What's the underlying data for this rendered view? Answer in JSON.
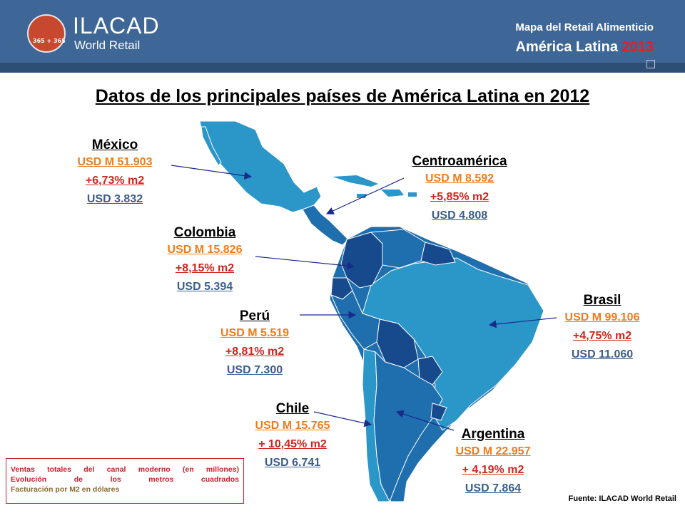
{
  "header": {
    "brand": "ILACAD",
    "brand_sub": "World Retail",
    "logo_days": "365 + 365",
    "line1": "Mapa del Retail Alimenticio",
    "line2_main": "América Latina ",
    "line2_year": "2013"
  },
  "title": "Datos de los principales países de América Latina en 2012",
  "countries": {
    "mexico": {
      "name": "México",
      "sales": "USD M 51.903",
      "growth": "+6,73% m2",
      "price": "USD 3.832"
    },
    "centroamerica": {
      "name": "Centroamérica",
      "sales": "USD M 8.592",
      "growth": "+5,85% m2 ",
      "price": "USD 4.808"
    },
    "colombia": {
      "name": "Colombia",
      "sales": "USD M 15.826",
      "growth": "+8,15% m2",
      "price": "USD 5.394"
    },
    "brasil": {
      "name": "Brasil",
      "sales": "USD M 99.106",
      "growth": "+4,75% m2 ",
      "price": "USD 11.060"
    },
    "peru": {
      "name": "Perú",
      "sales": "USD M 5.519",
      "growth": "+8,81% m2",
      "price": "USD 7.300"
    },
    "chile": {
      "name": "Chile",
      "sales": "USD M 15.765",
      "growth": "+ 10,45% m2",
      "price": "USD 6.741"
    },
    "argentina": {
      "name": "Argentina",
      "sales": "USD M 22.957",
      "growth": "+ 4,19% m2",
      "price": "USD 7.864"
    }
  },
  "legend": {
    "line1": "Ventas totales del canal moderno (en millones)",
    "line2": "Evolución de los metros cuadrados",
    "line3": "Facturación por M2 en dólares"
  },
  "source": "Fuente: ILACAD World Retail",
  "colors": {
    "header_bg": "#3e6797",
    "land_light": "#2b96c8",
    "land_mid": "#1f6fae",
    "land_dark": "#174a8c",
    "sales": "#f07c1a",
    "growth": "#d1251f",
    "price": "#3b5e8c"
  }
}
